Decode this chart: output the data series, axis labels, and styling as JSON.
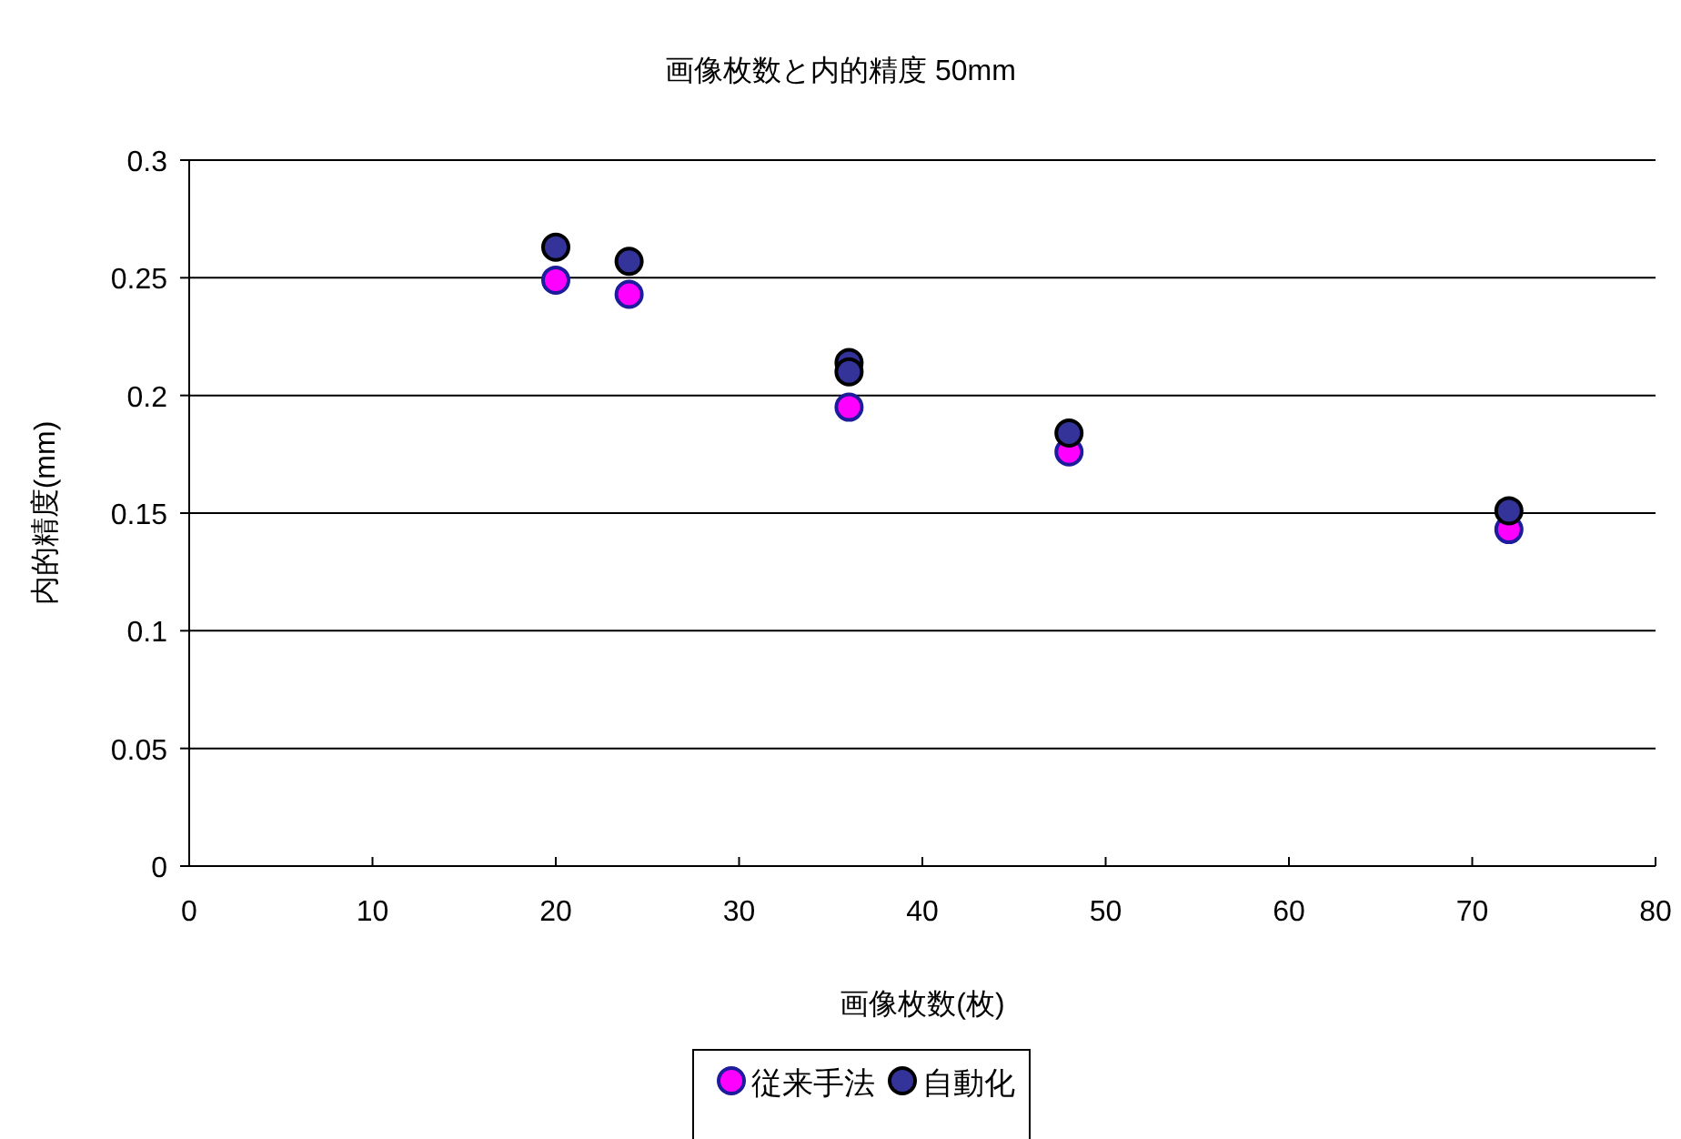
{
  "chart_data": {
    "type": "scatter",
    "title": "画像枚数と内的精度 50mm",
    "xlabel": "画像枚数(枚)",
    "ylabel": "内的精度(mm)",
    "xlim": [
      0,
      80
    ],
    "xticks": [
      0,
      10,
      20,
      30,
      40,
      50,
      60,
      70,
      80
    ],
    "ylim": [
      0,
      0.3
    ],
    "yticks": [
      0,
      0.05,
      0.1,
      0.15,
      0.2,
      0.25,
      0.3
    ],
    "grid": "y",
    "legend": "bottom",
    "marker": "circle",
    "series": [
      {
        "name": "従来手法",
        "color": "#ff00ff",
        "x": [
          20,
          24,
          36,
          48,
          72
        ],
        "values": [
          0.249,
          0.243,
          0.195,
          0.176,
          0.143
        ]
      },
      {
        "name": "自動化",
        "color": "#333399",
        "x": [
          20,
          24,
          36,
          36,
          48,
          72
        ],
        "values": [
          0.263,
          0.257,
          0.214,
          0.21,
          0.184,
          0.151
        ]
      }
    ]
  }
}
